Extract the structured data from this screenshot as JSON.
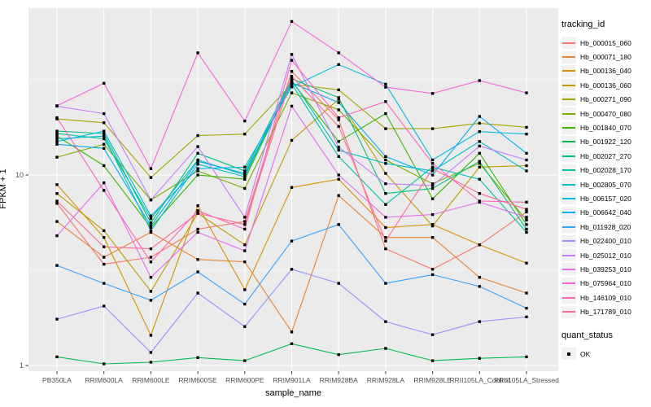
{
  "chart_data": {
    "type": "line",
    "title": "",
    "xlabel": "sample_name",
    "ylabel": "FPKM + 1",
    "y_scale": "log10",
    "y_ticks": [
      1,
      10
    ],
    "y_minor_breaks": [
      3.1623,
      31.623
    ],
    "ylim": [
      0.94,
      75.5
    ],
    "grid": "on",
    "legend_position": "right",
    "point_shape": "black-square",
    "categories": [
      "PB350LA",
      "RRIM600LA",
      "RRIM600LE",
      "RRIM600SE",
      "RRIM600PE",
      "RRIM901LA",
      "RRIM928BA",
      "RRIM928LA",
      "RRIM928LE",
      "RRII105LA_Control",
      "RRII105LA_Stressed"
    ],
    "series": [
      {
        "name": "Hb_000015_060",
        "color": "#F8766D",
        "values": [
          7.1,
          3.4,
          3.7,
          5.2,
          5.7,
          35,
          19.5,
          4.1,
          3.2,
          4.3,
          6.4
        ]
      },
      {
        "name": "Hb_000071_180",
        "color": "#EA8331",
        "values": [
          5.7,
          3.7,
          5.0,
          3.6,
          3.5,
          1.5,
          7.8,
          4.7,
          4.7,
          2.9,
          2.4
        ]
      },
      {
        "name": "Hb_000136_040",
        "color": "#D89000",
        "values": [
          8.9,
          4.7,
          1.44,
          6.9,
          2.5,
          8.6,
          9.5,
          5.3,
          5.5,
          4.3,
          3.45
        ]
      },
      {
        "name": "Hb_000136_060",
        "color": "#C09B00",
        "values": [
          8.0,
          5.1,
          2.45,
          6.3,
          4.3,
          15.2,
          25,
          10.2,
          5.4,
          11.0,
          11.2
        ]
      },
      {
        "name": "Hb_000271_090",
        "color": "#A3A500",
        "values": [
          19.7,
          18.8,
          9.7,
          16.1,
          16.4,
          30,
          28,
          17.5,
          17.5,
          18.7,
          17.8
        ]
      },
      {
        "name": "Hb_000470_080",
        "color": "#7CAE00",
        "values": [
          12.4,
          14.5,
          7.4,
          10.5,
          8.5,
          27,
          22,
          12.0,
          9.0,
          11.5,
          5.8
        ]
      },
      {
        "name": "Hb_001840_070",
        "color": "#39B600",
        "values": [
          16.0,
          11.2,
          5.3,
          10.0,
          9.5,
          31,
          15.0,
          21,
          7.5,
          13.0,
          5.5
        ]
      },
      {
        "name": "Hb_001922_120",
        "color": "#00BB4E",
        "values": [
          1.11,
          1.02,
          1.04,
          1.1,
          1.06,
          1.3,
          1.14,
          1.23,
          1.06,
          1.09,
          1.11
        ]
      },
      {
        "name": "Hb_002027_270",
        "color": "#00BF7D",
        "values": [
          17.0,
          16.5,
          5.6,
          13.0,
          10.5,
          32,
          25.5,
          8.0,
          8.5,
          11.8,
          5.2
        ]
      },
      {
        "name": "Hb_002028_170",
        "color": "#00C1A3",
        "values": [
          16.5,
          15.5,
          5.9,
          12.0,
          10.0,
          30,
          12.5,
          7.0,
          11.0,
          9.5,
          5.0
        ]
      },
      {
        "name": "Hb_002805_070",
        "color": "#00BFC4",
        "values": [
          15.5,
          16.0,
          5.1,
          11.4,
          9.8,
          31.5,
          13.5,
          11.5,
          10.5,
          15.0,
          10.5
        ]
      },
      {
        "name": "Hb_006157_020",
        "color": "#00BAE0",
        "values": [
          15.0,
          17.0,
          6.1,
          10.8,
          11.0,
          29,
          38,
          30,
          12.0,
          16.9,
          16.4
        ]
      },
      {
        "name": "Hb_006642_040",
        "color": "#00B0F6",
        "values": [
          14.5,
          13.8,
          5.4,
          11.8,
          10.2,
          30.5,
          24,
          12.5,
          10.0,
          20.3,
          13.0
        ]
      },
      {
        "name": "Hb_011928_020",
        "color": "#35A2FF",
        "values": [
          3.35,
          2.7,
          2.2,
          3.1,
          2.1,
          4.5,
          5.5,
          2.7,
          3.0,
          2.6,
          2.0
        ]
      },
      {
        "name": "Hb_022400_010",
        "color": "#9590FF",
        "values": [
          1.75,
          2.05,
          1.17,
          2.4,
          1.6,
          3.2,
          2.7,
          1.7,
          1.45,
          1.7,
          1.8
        ]
      },
      {
        "name": "Hb_025012_010",
        "color": "#C77CFF",
        "values": [
          23,
          21,
          7.4,
          14.1,
          6.0,
          43,
          14.0,
          9.0,
          8.8,
          14.2,
          12.0
        ]
      },
      {
        "name": "Hb_039253_010",
        "color": "#E76BF3",
        "values": [
          4.8,
          9.1,
          2.9,
          5.0,
          4.0,
          23,
          10.0,
          6.0,
          6.2,
          7.2,
          6.0
        ]
      },
      {
        "name": "Hb_075964_010",
        "color": "#FA62DB",
        "values": [
          23.1,
          30.3,
          10.8,
          43.8,
          19.2,
          64,
          43.8,
          28.9,
          26.8,
          31.3,
          27
        ]
      },
      {
        "name": "Hb_146109_010",
        "color": "#FF62BC",
        "values": [
          20,
          8.3,
          3.5,
          6.5,
          5.2,
          40,
          20,
          24.3,
          11.5,
          7.3,
          7.2
        ]
      },
      {
        "name": "Hb_171789_010",
        "color": "#FF6A98",
        "values": [
          7.3,
          4.2,
          4.1,
          6.3,
          5.5,
          33,
          18,
          4.5,
          10.8,
          8.0,
          6.6
        ]
      }
    ]
  },
  "legend": {
    "tracking_title": "tracking_id",
    "quant_title": "quant_status",
    "quant_label": "OK"
  },
  "style_colors": {
    "panel_background": "#EBEBEB",
    "grid_line": "#FFFFFF",
    "tick_text": "#4D4D4D",
    "point_color": "#000000",
    "legend_key_background": "#F2F2F2"
  }
}
